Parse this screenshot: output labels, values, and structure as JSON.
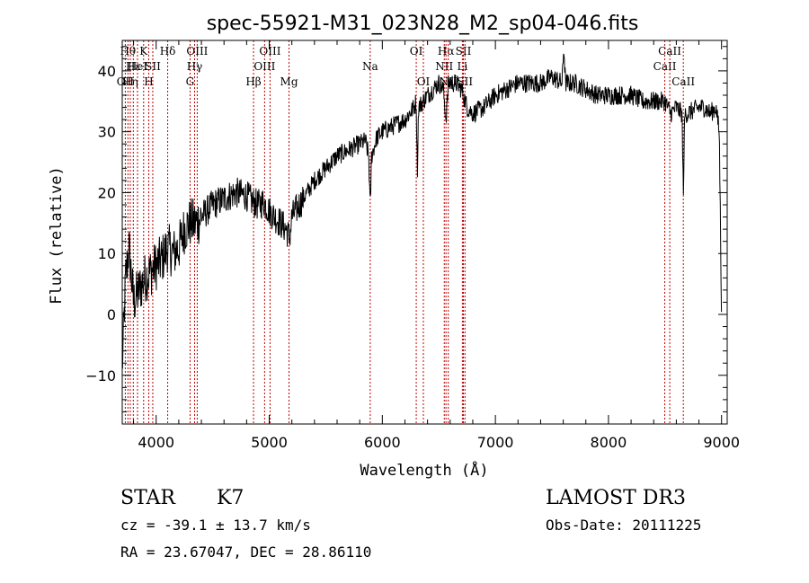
{
  "chart_data": {
    "type": "line",
    "title": "spec-55921-M31_023N28_M2_sp04-046.fits",
    "xlabel": "Wavelength (Å)",
    "ylabel": "Flux (relative)",
    "xlim": [
      3700,
      9050
    ],
    "ylim": [
      -18,
      45
    ],
    "x_ticks": [
      4000,
      5000,
      6000,
      7000,
      8000,
      9000
    ],
    "y_ticks": [
      -10,
      0,
      10,
      20,
      30,
      40
    ],
    "series": [
      {
        "name": "spectrum",
        "anchors": [
          [
            3700,
            -9
          ],
          [
            3730,
            6
          ],
          [
            3760,
            11
          ],
          [
            3800,
            2
          ],
          [
            3850,
            4
          ],
          [
            3900,
            6
          ],
          [
            3950,
            7
          ],
          [
            4000,
            8
          ],
          [
            4050,
            9
          ],
          [
            4100,
            11
          ],
          [
            4150,
            10
          ],
          [
            4200,
            11
          ],
          [
            4250,
            14
          ],
          [
            4300,
            15
          ],
          [
            4350,
            15
          ],
          [
            4400,
            16
          ],
          [
            4450,
            17
          ],
          [
            4500,
            18
          ],
          [
            4600,
            19
          ],
          [
            4700,
            20
          ],
          [
            4800,
            19.5
          ],
          [
            4850,
            18.5
          ],
          [
            4900,
            18
          ],
          [
            4950,
            18.5
          ],
          [
            5000,
            17
          ],
          [
            5050,
            16
          ],
          [
            5100,
            15
          ],
          [
            5150,
            14
          ],
          [
            5180,
            12.5
          ],
          [
            5200,
            16
          ],
          [
            5300,
            19
          ],
          [
            5400,
            22
          ],
          [
            5500,
            24
          ],
          [
            5600,
            26
          ],
          [
            5700,
            27
          ],
          [
            5800,
            28
          ],
          [
            5850,
            28.5
          ],
          [
            5880,
            26
          ],
          [
            5893,
            17
          ],
          [
            5905,
            26
          ],
          [
            5950,
            29
          ],
          [
            6000,
            30
          ],
          [
            6100,
            31
          ],
          [
            6200,
            32
          ],
          [
            6280,
            34
          ],
          [
            6300,
            35
          ],
          [
            6310,
            23
          ],
          [
            6320,
            34
          ],
          [
            6400,
            36
          ],
          [
            6450,
            37
          ],
          [
            6500,
            38
          ],
          [
            6540,
            37
          ],
          [
            6563,
            32
          ],
          [
            6585,
            38
          ],
          [
            6650,
            38
          ],
          [
            6700,
            37
          ],
          [
            6750,
            34
          ],
          [
            6800,
            33
          ],
          [
            6900,
            34
          ],
          [
            7000,
            36
          ],
          [
            7100,
            37
          ],
          [
            7200,
            38
          ],
          [
            7300,
            38
          ],
          [
            7400,
            38
          ],
          [
            7500,
            39
          ],
          [
            7590,
            38
          ],
          [
            7605,
            44
          ],
          [
            7620,
            38
          ],
          [
            7700,
            38
          ],
          [
            7800,
            37
          ],
          [
            7900,
            36
          ],
          [
            8000,
            36
          ],
          [
            8100,
            36
          ],
          [
            8200,
            36
          ],
          [
            8300,
            35
          ],
          [
            8400,
            35
          ],
          [
            8500,
            35
          ],
          [
            8550,
            33
          ],
          [
            8600,
            34
          ],
          [
            8650,
            33
          ],
          [
            8662,
            20
          ],
          [
            8675,
            33
          ],
          [
            8700,
            33
          ],
          [
            8800,
            34
          ],
          [
            8850,
            34
          ],
          [
            8900,
            33
          ],
          [
            8950,
            34
          ],
          [
            8980,
            30
          ],
          [
            9000,
            0
          ]
        ]
      }
    ],
    "line_markers": [
      {
        "x": 3727,
        "label": "OII",
        "row": 2
      },
      {
        "x": 3750,
        "label": "Hθ",
        "row": 0
      },
      {
        "x": 3771,
        "label": "Hη",
        "row": 2
      },
      {
        "x": 3798,
        "label": "Hε",
        "row": 1
      },
      {
        "x": 3835,
        "label": "HeI",
        "row": 1
      },
      {
        "x": 3889,
        "label": "K",
        "row": 0
      },
      {
        "x": 3934,
        "label": "H",
        "row": 2
      },
      {
        "x": 3970,
        "label": "SII",
        "row": 1
      },
      {
        "x": 4102,
        "label": "Hδ",
        "row": 0
      },
      {
        "x": 4300,
        "label": "G",
        "row": 2
      },
      {
        "x": 4340,
        "label": "Hγ",
        "row": 1
      },
      {
        "x": 4363,
        "label": "OIII",
        "row": 0
      },
      {
        "x": 4861,
        "label": "Hβ",
        "row": 2
      },
      {
        "x": 4959,
        "label": "OIII",
        "row": 1
      },
      {
        "x": 5007,
        "label": "OIII",
        "row": 0
      },
      {
        "x": 5175,
        "label": "Mg",
        "row": 2
      },
      {
        "x": 5893,
        "label": "Na",
        "row": 1
      },
      {
        "x": 6300,
        "label": "OI",
        "row": 0
      },
      {
        "x": 6363,
        "label": "OI",
        "row": 2
      },
      {
        "x": 6548,
        "label": "NII",
        "row": 1
      },
      {
        "x": 6563,
        "label": "Hα",
        "row": 0
      },
      {
        "x": 6583,
        "label": "NII",
        "row": 2
      },
      {
        "x": 6708,
        "label": "Li",
        "row": 1
      },
      {
        "x": 6717,
        "label": "SII",
        "row": 0
      },
      {
        "x": 6731,
        "label": "SII",
        "row": 2
      },
      {
        "x": 8498,
        "label": "CaII",
        "row": 1
      },
      {
        "x": 8542,
        "label": "CaII",
        "row": 0
      },
      {
        "x": 8662,
        "label": "CaII",
        "row": 2
      }
    ],
    "legend": "none",
    "grid": false
  },
  "info": {
    "class_label": "STAR",
    "subclass": "K7",
    "velocity": "cz = -39.1 ± 13.7 km/s",
    "coords": "RA =  23.67047, DEC =  28.86110",
    "survey": "LAMOST DR3",
    "obs_date": "Obs-Date: 20111225"
  }
}
